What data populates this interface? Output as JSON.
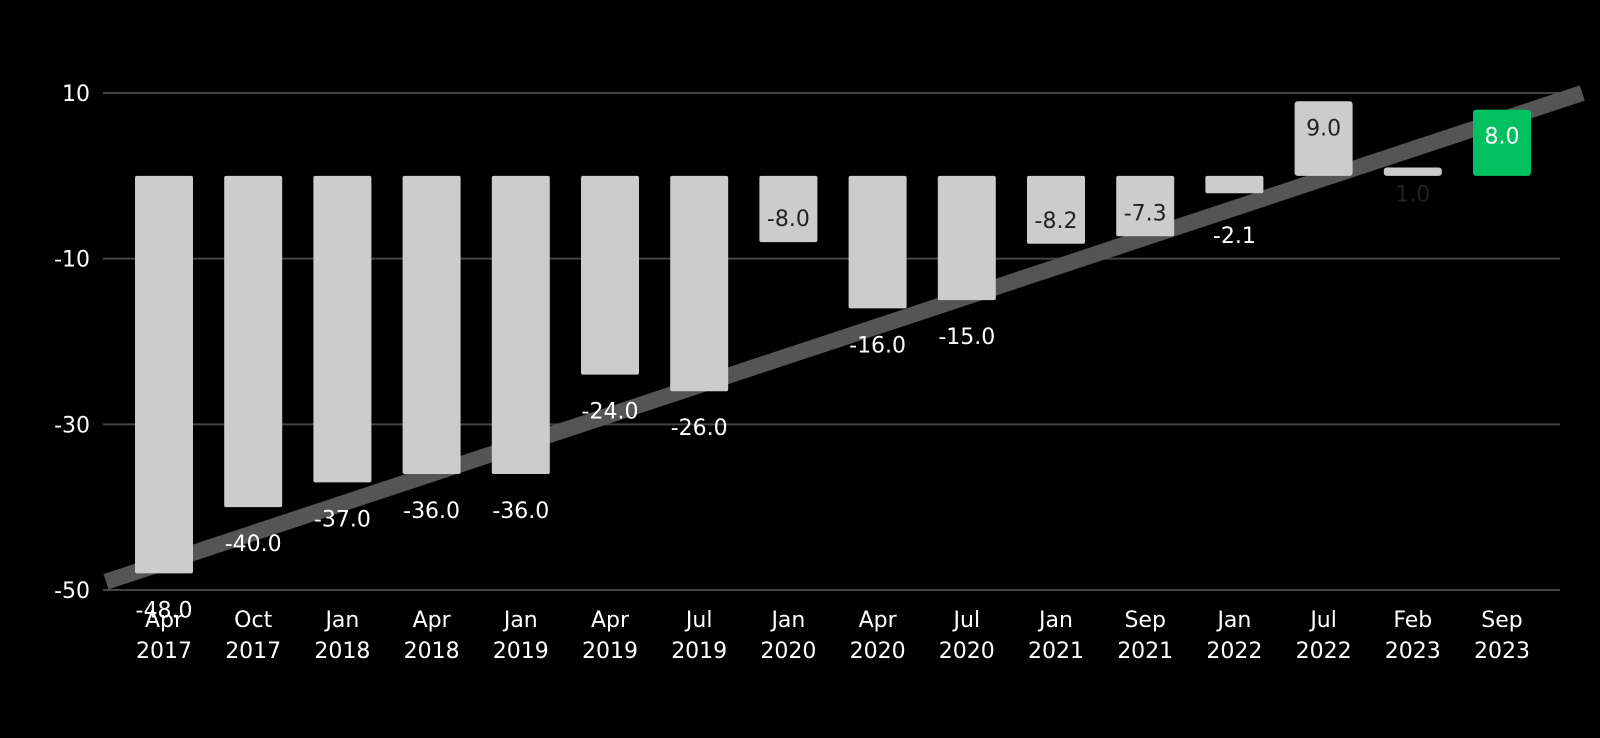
{
  "chart_data": {
    "type": "bar",
    "title": "",
    "xlabel": "",
    "ylabel": "",
    "categories": [
      [
        "Apr",
        "2017"
      ],
      [
        "Oct",
        "2017"
      ],
      [
        "Jan",
        "2018"
      ],
      [
        "Apr",
        "2018"
      ],
      [
        "Jan",
        "2019"
      ],
      [
        "Apr",
        "2019"
      ],
      [
        "Jul",
        "2019"
      ],
      [
        "Jan",
        "2020"
      ],
      [
        "Apr",
        "2020"
      ],
      [
        "Jul",
        "2020"
      ],
      [
        "Jan",
        "2021"
      ],
      [
        "Sep",
        "2021"
      ],
      [
        "Jan",
        "2022"
      ],
      [
        "Jul",
        "2022"
      ],
      [
        "Feb",
        "2023"
      ],
      [
        "Sep",
        "2023"
      ]
    ],
    "values": [
      -48.0,
      -40.0,
      -37.0,
      -36.0,
      -36.0,
      -24.0,
      -26.0,
      -8.0,
      -16.0,
      -15.0,
      -8.2,
      -7.3,
      -2.1,
      9.0,
      1.0,
      8.0
    ],
    "data_labels": [
      "-48.0",
      "-40.0",
      "-37.0",
      "-36.0",
      "-36.0",
      "-24.0",
      "-26.0",
      "-8.0",
      "-16.0",
      "-15.0",
      "-8.2",
      "-7.3",
      "-2.1",
      "9.0",
      "1.0",
      "8.0"
    ],
    "highlight_index": 15,
    "yticks": [
      10,
      -10,
      -30,
      -50
    ],
    "ytick_labels": [
      "10",
      "-10",
      "-30",
      "-50"
    ],
    "ylim": [
      -50,
      10
    ],
    "grid": true,
    "trend_line": {
      "start": [
        -0.65,
        -49
      ],
      "end": [
        15.9,
        10
      ]
    },
    "colors": {
      "background": "#000000",
      "bar": "#cccccc",
      "highlight": "#00c060",
      "grid": "#444444",
      "trend": "#555555",
      "text": "#ffffff",
      "label_on_bar": "#222222"
    }
  }
}
